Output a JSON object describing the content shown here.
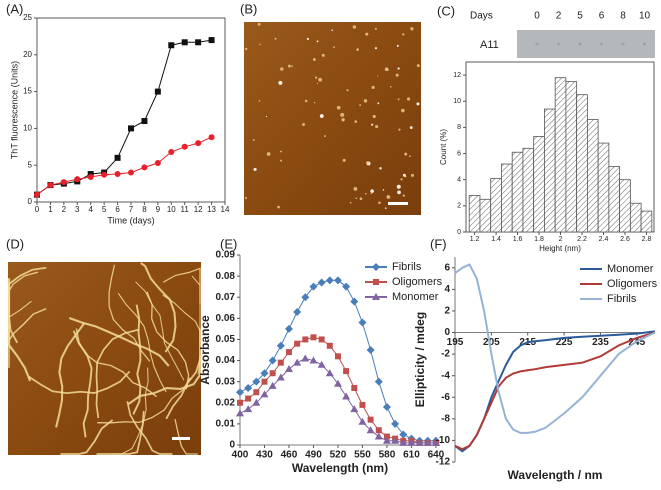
{
  "panels": [
    "(A)",
    "(B)",
    "(C)",
    "(D)",
    "(E)",
    "(F)"
  ],
  "dot_blot": {
    "title": "Days",
    "days": [
      0,
      2,
      5,
      6,
      8,
      10
    ],
    "row_label": "A11"
  },
  "chart_data": [
    {
      "type": "line",
      "xlabel": "Time (days)",
      "ylabel": "ThT fluorescence (Units)",
      "x": [
        0,
        1,
        2,
        3,
        4,
        5,
        6,
        7,
        8,
        9,
        10,
        11,
        12,
        13
      ],
      "xlim": [
        0,
        14
      ],
      "xticks": [
        0,
        1,
        2,
        3,
        4,
        5,
        6,
        7,
        8,
        9,
        10,
        11,
        12,
        13,
        14
      ],
      "ylim": [
        0,
        25
      ],
      "yticks": [
        0,
        5,
        10,
        15,
        20,
        25
      ],
      "series": [
        {
          "color": "#111111",
          "marker": "square",
          "values": [
            1,
            2.3,
            2.5,
            2.8,
            3.8,
            4,
            6,
            10,
            11,
            15,
            21.3,
            21.7,
            21.7,
            22
          ]
        },
        {
          "color": "#e8202a",
          "marker": "circle",
          "values": [
            1,
            2.3,
            2.7,
            3.1,
            3.4,
            3.7,
            3.8,
            4,
            4.7,
            5.3,
            6.8,
            7.5,
            8,
            8.8
          ]
        }
      ]
    },
    {
      "type": "histogram",
      "xlabel": "Height (nm)",
      "ylabel": "Count (%)",
      "bins": [
        1.15,
        1.25,
        1.35,
        1.45,
        1.55,
        1.65,
        1.75,
        1.85,
        1.95,
        2.05,
        2.15,
        2.25,
        2.35,
        2.45,
        2.55,
        2.65,
        2.75,
        2.85
      ],
      "values": [
        2.8,
        2.5,
        4.1,
        5.2,
        6.1,
        6.4,
        7.3,
        9.4,
        11.8,
        11.5,
        10.5,
        8.6,
        6.8,
        5.0,
        4.0,
        2.2,
        1.6
      ],
      "color": "#555555",
      "xlim": [
        1.12,
        2.87
      ],
      "xticks": [
        1.2,
        1.4,
        1.6,
        1.8,
        2.0,
        2.2,
        2.4,
        2.6,
        2.8
      ],
      "ylim": [
        0,
        13
      ],
      "yticks": [
        0,
        2,
        4,
        6,
        8,
        10,
        12
      ]
    },
    {
      "type": "line",
      "xlabel": "Wavelength (nm)",
      "ylabel": "Absorbance",
      "legend": "upper right",
      "x": [
        400,
        410,
        420,
        430,
        440,
        450,
        460,
        470,
        480,
        490,
        500,
        510,
        520,
        530,
        540,
        550,
        560,
        570,
        580,
        590,
        600,
        610,
        620,
        630,
        640
      ],
      "xlim": [
        400,
        645
      ],
      "xticks": [
        400,
        430,
        460,
        490,
        520,
        550,
        580,
        610,
        640
      ],
      "ylim": [
        0,
        0.09
      ],
      "yticks": [
        0,
        0.01,
        0.02,
        0.03,
        0.04,
        0.05,
        0.06,
        0.07,
        0.08,
        0.09
      ],
      "series": [
        {
          "name": "Fibrils",
          "color": "#4a7ebb",
          "marker": "diamond",
          "values": [
            0.025,
            0.027,
            0.03,
            0.034,
            0.04,
            0.047,
            0.055,
            0.063,
            0.07,
            0.075,
            0.077,
            0.078,
            0.078,
            0.075,
            0.068,
            0.058,
            0.045,
            0.03,
            0.018,
            0.01,
            0.005,
            0.003,
            0.002,
            0.002,
            0.002
          ]
        },
        {
          "name": "Oligomers",
          "color": "#c0504d",
          "marker": "square",
          "values": [
            0.02,
            0.022,
            0.025,
            0.03,
            0.034,
            0.039,
            0.044,
            0.048,
            0.05,
            0.051,
            0.05,
            0.047,
            0.042,
            0.035,
            0.027,
            0.019,
            0.012,
            0.007,
            0.004,
            0.003,
            0.002,
            0.002,
            0.001,
            0.001,
            0.001
          ]
        },
        {
          "name": "Monomer",
          "color": "#8064a2",
          "marker": "triangle",
          "values": [
            0.015,
            0.017,
            0.02,
            0.024,
            0.028,
            0.032,
            0.036,
            0.039,
            0.041,
            0.04,
            0.038,
            0.034,
            0.029,
            0.023,
            0.017,
            0.011,
            0.007,
            0.004,
            0.002,
            0.002,
            0.001,
            0.001,
            0.001,
            0.001,
            0.001
          ]
        }
      ]
    },
    {
      "type": "line",
      "xlabel": "Wavelength / nm",
      "ylabel": "Ellipticity / mdeg",
      "legend": "upper right",
      "x": [
        195,
        197,
        199,
        201,
        203,
        205,
        207,
        209,
        211,
        213,
        215,
        217,
        220,
        225,
        230,
        235,
        240,
        245,
        250
      ],
      "xlim": [
        195,
        250
      ],
      "xticks": [
        195,
        205,
        215,
        225,
        235,
        245
      ],
      "ylim": [
        -12,
        7
      ],
      "yticks": [
        -12,
        -10,
        -8,
        -6,
        -4,
        -2,
        0,
        2,
        4,
        6
      ],
      "series": [
        {
          "name": "Monomer",
          "color": "#2c5a9a",
          "values": [
            -10.5,
            -11,
            -10.5,
            -9.5,
            -8,
            -6,
            -4.5,
            -3,
            -1.8,
            -1.2,
            -0.9,
            -0.8,
            -0.7,
            -0.5,
            -0.4,
            -0.3,
            -0.2,
            -0.1,
            0.1
          ]
        },
        {
          "name": "Oligomers",
          "color": "#b03a36",
          "values": [
            -10.5,
            -10.8,
            -10.5,
            -9.5,
            -8,
            -6.5,
            -5,
            -4.2,
            -3.8,
            -3.6,
            -3.5,
            -3.4,
            -3.2,
            -3,
            -2.8,
            -2.2,
            -1.2,
            -0.5,
            0
          ]
        },
        {
          "name": "Fibrils",
          "color": "#95b3d7",
          "values": [
            5.5,
            6,
            6.3,
            5,
            2,
            -2,
            -5.5,
            -8,
            -9,
            -9.3,
            -9.3,
            -9.2,
            -8.8,
            -7.5,
            -6,
            -4,
            -2,
            -0.8,
            0
          ]
        }
      ]
    }
  ]
}
